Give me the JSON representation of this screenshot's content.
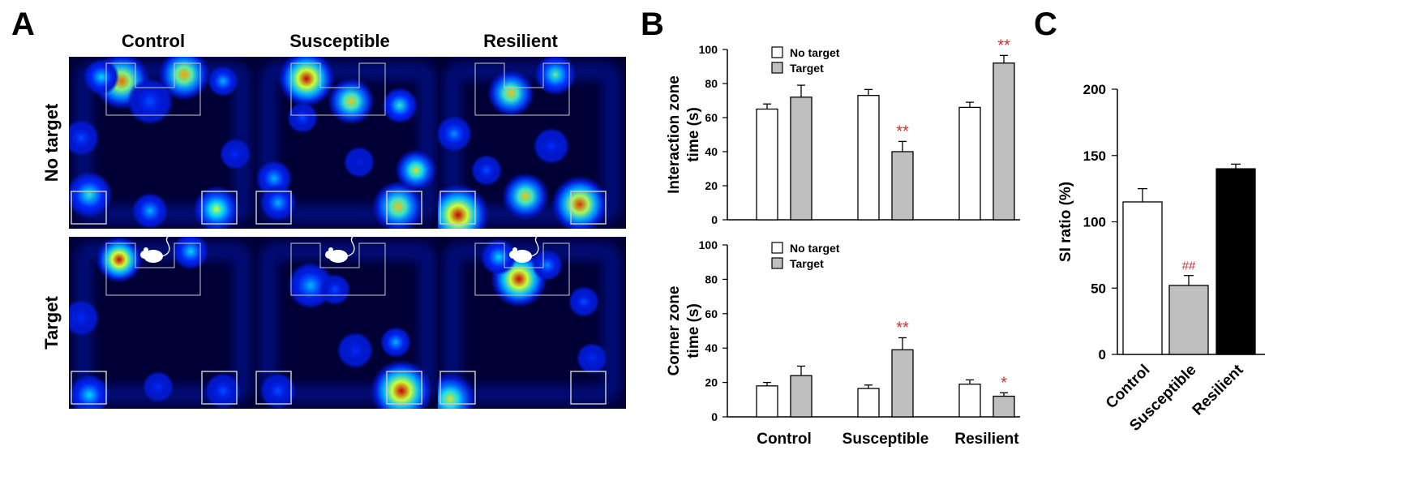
{
  "panels": {
    "a": "A",
    "b": "B",
    "c": "C"
  },
  "panel_a": {
    "columns": [
      "Control",
      "Susceptible",
      "Resilient"
    ],
    "rows": [
      "No target",
      "Target"
    ]
  },
  "colors": {
    "white_bar": "#ffffff",
    "gray_bar": "#bfbfbf",
    "black_bar": "#000000",
    "significance": "#e8232a",
    "heat_background": "#000037"
  },
  "chart_data": [
    {
      "id": "B-interaction",
      "type": "bar",
      "ylabel_lines": [
        "Interaction zone",
        "time (s)"
      ],
      "categories": [
        "Control",
        "Susceptible",
        "Resilient"
      ],
      "ylim": [
        0,
        100
      ],
      "yticks": [
        0,
        20,
        40,
        60,
        80,
        100
      ],
      "legend": "top-left",
      "series": [
        {
          "name": "No target",
          "values": [
            65,
            73,
            66
          ],
          "errors": [
            3,
            3.5,
            3
          ],
          "color": "#ffffff"
        },
        {
          "name": "Target",
          "values": [
            72,
            40,
            92
          ],
          "errors": [
            7,
            6,
            4.5
          ],
          "color": "#bfbfbf"
        }
      ],
      "annotations": [
        {
          "category": "Susceptible",
          "series": "Target",
          "text": "**"
        },
        {
          "category": "Resilient",
          "series": "Target",
          "text": "**"
        }
      ]
    },
    {
      "id": "B-corner",
      "type": "bar",
      "ylabel_lines": [
        "Corner zone",
        "time (s)"
      ],
      "categories": [
        "Control",
        "Susceptible",
        "Resilient"
      ],
      "ylim": [
        0,
        100
      ],
      "yticks": [
        0,
        20,
        40,
        60,
        80,
        100
      ],
      "legend": "top-left",
      "series": [
        {
          "name": "No target",
          "values": [
            18,
            16.5,
            19
          ],
          "errors": [
            2,
            2,
            2.5
          ],
          "color": "#ffffff"
        },
        {
          "name": "Target",
          "values": [
            24,
            39,
            12
          ],
          "errors": [
            5.5,
            7,
            2
          ],
          "color": "#bfbfbf"
        }
      ],
      "annotations": [
        {
          "category": "Susceptible",
          "series": "Target",
          "text": "**"
        },
        {
          "category": "Resilient",
          "series": "Target",
          "text": "*"
        }
      ]
    },
    {
      "id": "C",
      "type": "bar",
      "ylabel": "SI ratio (%)",
      "categories": [
        "Control",
        "Susceptible",
        "Resilient"
      ],
      "values": [
        115,
        52,
        140
      ],
      "errors": [
        10,
        7.5,
        3.5
      ],
      "colors": [
        "#ffffff",
        "#bfbfbf",
        "#000000"
      ],
      "ylim": [
        0,
        200
      ],
      "yticks": [
        0,
        50,
        100,
        150,
        200
      ],
      "annotations": [
        {
          "category": "Susceptible",
          "text": "##"
        }
      ]
    }
  ]
}
